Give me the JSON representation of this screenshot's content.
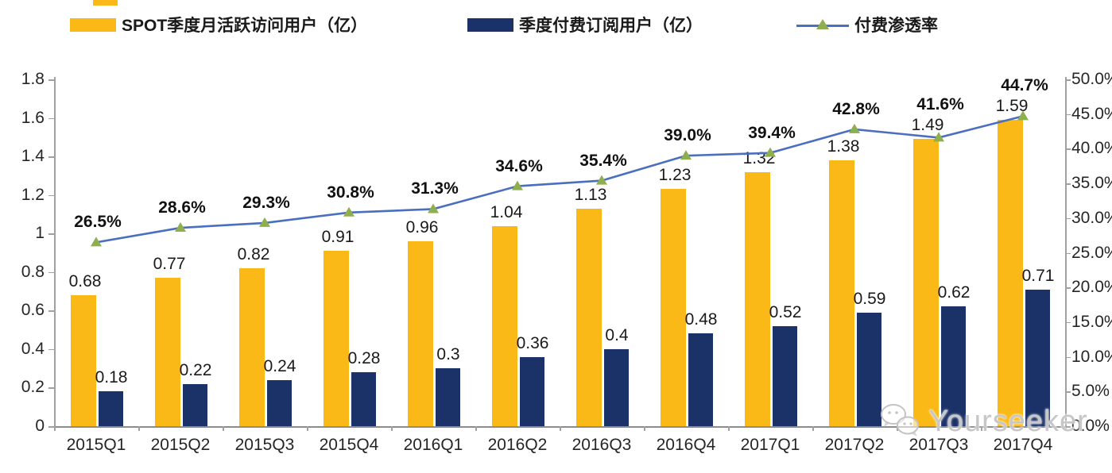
{
  "chart_data": {
    "type": "combo",
    "categories": [
      "2015Q1",
      "2015Q2",
      "2015Q3",
      "2015Q4",
      "2016Q1",
      "2016Q2",
      "2016Q3",
      "2016Q4",
      "2017Q1",
      "2017Q2",
      "2017Q3",
      "2017Q4"
    ],
    "series": [
      {
        "name": "SPOT季度月活跃访问用户（亿）",
        "type": "bar",
        "axis": "left",
        "color": "#FBB917",
        "values": [
          0.68,
          0.77,
          0.82,
          0.91,
          0.96,
          1.04,
          1.13,
          1.23,
          1.32,
          1.38,
          1.49,
          1.59
        ],
        "labels": [
          "0.68",
          "0.77",
          "0.82",
          "0.91",
          "0.96",
          "1.04",
          "1.13",
          "1.23",
          "1.32",
          "1.38",
          "1.49",
          "1.59"
        ]
      },
      {
        "name": "季度付费订阅用户（亿）",
        "type": "bar",
        "axis": "left",
        "color": "#1B3269",
        "values": [
          0.18,
          0.22,
          0.24,
          0.28,
          0.3,
          0.36,
          0.4,
          0.48,
          0.52,
          0.59,
          0.62,
          0.71
        ],
        "labels": [
          "0.18",
          "0.22",
          "0.24",
          "0.28",
          "0.3",
          "0.36",
          "0.4",
          "0.48",
          "0.52",
          "0.59",
          "0.62",
          "0.71"
        ]
      },
      {
        "name": "付费渗透率",
        "type": "line",
        "axis": "right",
        "color": "#4A6FBE",
        "marker": "triangle",
        "marker_color": "#8FAE4E",
        "values": [
          26.5,
          28.6,
          29.3,
          30.8,
          31.3,
          34.6,
          35.4,
          39.0,
          39.4,
          42.8,
          41.6,
          44.7
        ],
        "labels": [
          "26.5%",
          "28.6%",
          "29.3%",
          "30.8%",
          "31.3%",
          "34.6%",
          "35.4%",
          "39.0%",
          "39.4%",
          "42.8%",
          "41.6%",
          "44.7%"
        ]
      }
    ],
    "left_axis": {
      "min": 0,
      "max": 1.8,
      "step": 0.2,
      "tick_labels": [
        "0",
        "0.2",
        "0.4",
        "0.6",
        "0.8",
        "1",
        "1.2",
        "1.4",
        "1.6",
        "1.8"
      ]
    },
    "right_axis": {
      "min": 0,
      "max": 50,
      "step": 5,
      "tick_labels": [
        "0.0%",
        "5.0%",
        "10.0%",
        "15.0%",
        "20.0%",
        "25.0%",
        "30.0%",
        "35.0%",
        "40.0%",
        "45.0%",
        "50.0%"
      ]
    },
    "grid": false,
    "legend_position": "top",
    "title": ""
  },
  "watermark": {
    "text": "Yourseeker",
    "icon": "wechat-icon"
  },
  "colors": {
    "bar_mau": "#FBB917",
    "bar_paid": "#1B3269",
    "line": "#4A6FBE",
    "marker": "#8FAE4E",
    "axis": "#A0A0A0",
    "text": "#1A1A1A",
    "watermark": "#C7C7C7"
  }
}
